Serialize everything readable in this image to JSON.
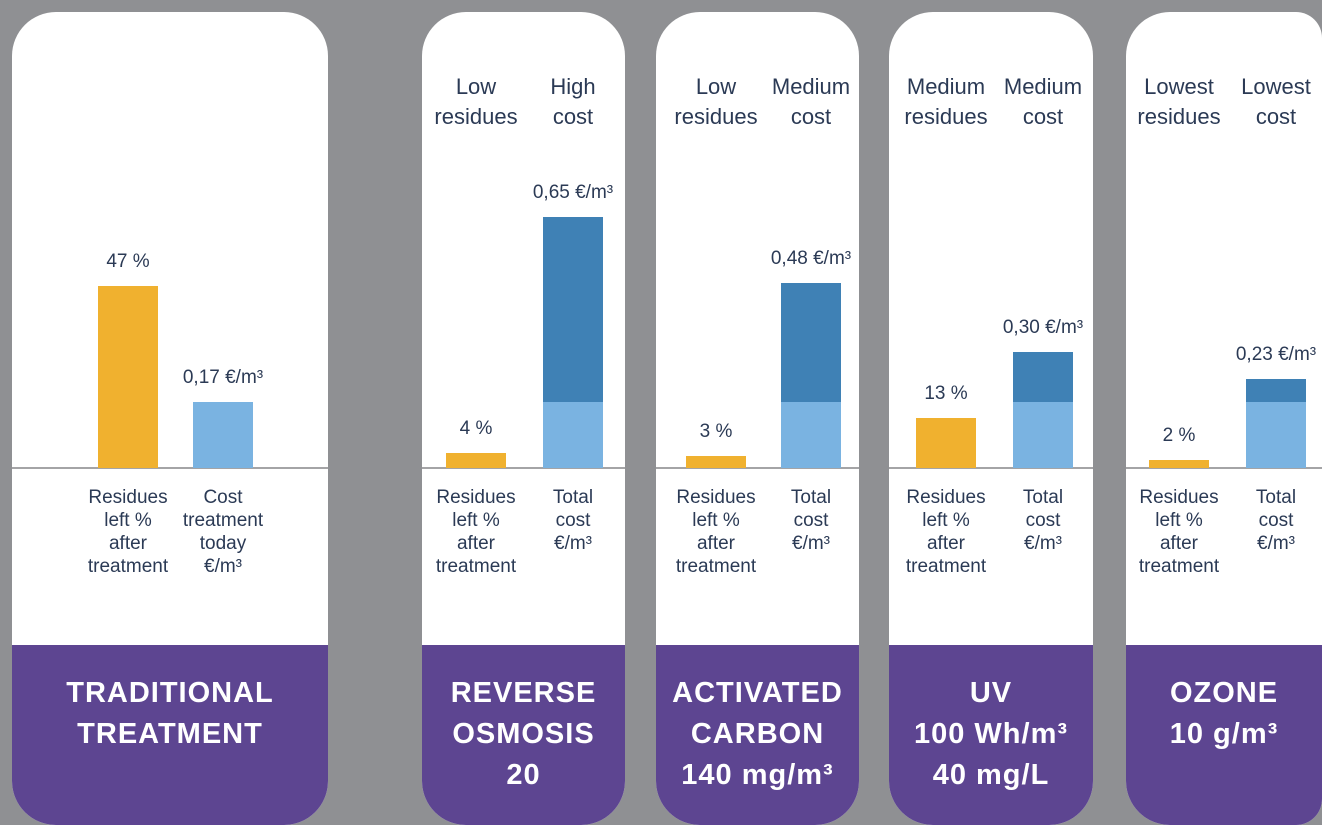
{
  "colors": {
    "background": "#8f9093",
    "card": "#ffffff",
    "title_band": "#5d4591",
    "title_text": "#ffffff",
    "text": "#2b3a55",
    "axis": "#a4a4a6"
  },
  "chart_data": [
    {
      "type": "bar",
      "title": "TRADITIONAL\nTREATMENT",
      "bars": [
        {
          "category": "Residues\nleft %\nafter\ntreatment",
          "value": 47,
          "value_label": "47 %",
          "segments": [
            {
              "value": 47,
              "color": "#f0b12f"
            }
          ]
        },
        {
          "category": "Cost\ntreatment\ntoday\n€/m³",
          "value": 0.17,
          "value_label": "0,17 €/m³",
          "segments": [
            {
              "value": 0.17,
              "color": "#7ab3e1"
            }
          ]
        }
      ]
    },
    {
      "type": "bar",
      "title": "REVERSE\nOSMOSIS\n20",
      "headlines": [
        "Low\nresidues",
        "High\ncost"
      ],
      "bars": [
        {
          "category": "Residues\nleft %\nafter\ntreatment",
          "value": 4,
          "value_label": "4 %",
          "segments": [
            {
              "value": 4,
              "color": "#f0b12f"
            }
          ]
        },
        {
          "category": "Total\ncost\n€/m³",
          "value": 0.65,
          "value_label": "0,65 €/m³",
          "segments": [
            {
              "value": 0.17,
              "color": "#7ab3e1"
            },
            {
              "value": 0.48,
              "color": "#3f81b5"
            }
          ]
        }
      ]
    },
    {
      "type": "bar",
      "title": "ACTIVATED\nCARBON\n140 mg/m³",
      "headlines": [
        "Low\nresidues",
        "Medium\ncost"
      ],
      "bars": [
        {
          "category": "Residues\nleft %\nafter\ntreatment",
          "value": 3,
          "value_label": "3 %",
          "segments": [
            {
              "value": 3,
              "color": "#f0b12f"
            }
          ]
        },
        {
          "category": "Total\ncost\n€/m³",
          "value": 0.48,
          "value_label": "0,48 €/m³",
          "segments": [
            {
              "value": 0.17,
              "color": "#7ab3e1"
            },
            {
              "value": 0.31,
              "color": "#3f81b5"
            }
          ]
        }
      ]
    },
    {
      "type": "bar",
      "title": "UV\n100 Wh/m³\n40 mg/L",
      "headlines": [
        "Medium\nresidues",
        "Medium\ncost"
      ],
      "bars": [
        {
          "category": "Residues\nleft %\nafter\ntreatment",
          "value": 13,
          "value_label": "13 %",
          "segments": [
            {
              "value": 13,
              "color": "#f0b12f"
            }
          ]
        },
        {
          "category": "Total\ncost\n€/m³",
          "value": 0.3,
          "value_label": "0,30 €/m³",
          "segments": [
            {
              "value": 0.17,
              "color": "#7ab3e1"
            },
            {
              "value": 0.13,
              "color": "#3f81b5"
            }
          ]
        }
      ]
    },
    {
      "type": "bar",
      "title": "OZONE\n10 g/m³",
      "headlines": [
        "Lowest\nresidues",
        "Lowest\ncost"
      ],
      "bars": [
        {
          "category": "Residues\nleft %\nafter\ntreatment",
          "value": 2,
          "value_label": "2 %",
          "segments": [
            {
              "value": 2,
              "color": "#f0b12f"
            }
          ]
        },
        {
          "category": "Total\ncost\n€/m³",
          "value": 0.23,
          "value_label": "0,23 €/m³",
          "segments": [
            {
              "value": 0.17,
              "color": "#7ab3e1"
            },
            {
              "value": 0.06,
              "color": "#3f81b5"
            }
          ]
        }
      ]
    }
  ]
}
